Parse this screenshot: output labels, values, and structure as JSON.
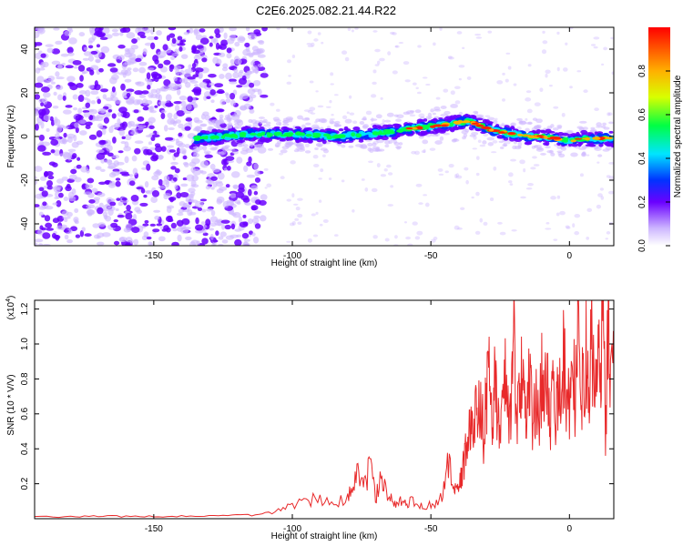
{
  "title": "C2E6.2025.082.21.44.R22",
  "colors": {
    "red_line": "#e8292a",
    "purple": "#6a00ff",
    "light_purple": "#cdb6ff",
    "axis": "#000000"
  },
  "chart_data": [
    {
      "type": "heatmap",
      "name": "spectrogram",
      "title": "C2E6.2025.082.21.44.R22",
      "xlabel": "Height of straight line (km)",
      "ylabel": "Frequency (Hz)",
      "xlim": [
        -193,
        16
      ],
      "ylim": [
        -50,
        50
      ],
      "xticks": [
        -150,
        -100,
        -50,
        0
      ],
      "xtick_labels": [
        "-150",
        "-100",
        "-50",
        "0"
      ],
      "yticks": [
        -40,
        -20,
        0,
        20,
        40
      ],
      "ytick_labels": [
        "-40",
        "-20",
        "0",
        "20",
        "40"
      ],
      "colorbar": {
        "label": "Normalized spectral amplitude",
        "range": [
          0,
          1
        ],
        "ticks": [
          0.0,
          0.2,
          0.4,
          0.6,
          0.8
        ],
        "tick_labels": [
          "0.0",
          "0.2",
          "0.4",
          "0.6",
          "0.8"
        ]
      },
      "ridge": {
        "x": [
          -135,
          -125,
          -115,
          -105,
          -95,
          -85,
          -75,
          -65,
          -55,
          -48,
          -42,
          -36,
          -32,
          -28,
          -24,
          -20,
          -15,
          -10,
          -5,
          0,
          5,
          10,
          16
        ],
        "y": [
          -1,
          0,
          1,
          1,
          1,
          0,
          1,
          2,
          4,
          5,
          6,
          7,
          5,
          3,
          2,
          1,
          0,
          0,
          -1,
          -2,
          -1,
          -1,
          -1
        ]
      },
      "noise_region_x": [
        -193,
        -110
      ]
    },
    {
      "type": "line",
      "name": "snr",
      "xlabel": "Height of straight line (km)",
      "ylabel": "SNR (10 * V/V)",
      "multiplier_label": "(x10",
      "multiplier_exp": "4",
      "xlim": [
        -193,
        16
      ],
      "ylim": [
        0,
        1.25
      ],
      "xticks": [
        -150,
        -100,
        -50,
        0
      ],
      "xtick_labels": [
        "-150",
        "-100",
        "-50",
        "0"
      ],
      "yticks": [
        0.2,
        0.4,
        0.6,
        0.8,
        1.0,
        1.2
      ],
      "ytick_labels": [
        "0.2",
        "0.4",
        "0.6",
        "0.8",
        "1.0",
        "1.2"
      ],
      "series": [
        {
          "x": [
            -193,
            -180,
            -170,
            -160,
            -150,
            -140,
            -130,
            -120,
            -112,
            -105,
            -100,
            -95,
            -90,
            -85,
            -80,
            -78,
            -76,
            -74,
            -72,
            -70,
            -68,
            -66,
            -64,
            -62,
            -60,
            -58,
            -55,
            -52,
            -49,
            -46,
            -44,
            -42,
            -41,
            -40,
            -39,
            -38,
            -37,
            -36,
            -35,
            -34,
            -33,
            -32,
            -31,
            -30,
            -29,
            -28,
            -27,
            -26,
            -25,
            -24,
            -23,
            -22,
            -21,
            -20,
            -19,
            -18,
            -17,
            -16,
            -15,
            -14,
            -13,
            -12,
            -11,
            -10,
            -9,
            -8,
            -7,
            -6,
            -5,
            -4,
            -3,
            -2,
            -1,
            0,
            1,
            2,
            3,
            4,
            5,
            6,
            7,
            8,
            9,
            10,
            11,
            12,
            13,
            14,
            15,
            16
          ],
          "y": [
            0.01,
            0.012,
            0.015,
            0.013,
            0.012,
            0.014,
            0.016,
            0.018,
            0.02,
            0.05,
            0.08,
            0.1,
            0.12,
            0.09,
            0.11,
            0.2,
            0.25,
            0.18,
            0.3,
            0.12,
            0.22,
            0.15,
            0.1,
            0.08,
            0.12,
            0.09,
            0.1,
            0.07,
            0.08,
            0.12,
            0.35,
            0.2,
            0.14,
            0.18,
            0.25,
            0.32,
            0.45,
            0.52,
            0.48,
            0.6,
            0.55,
            0.78,
            0.42,
            0.7,
            0.85,
            0.5,
            0.88,
            0.62,
            0.4,
            0.7,
            0.9,
            0.55,
            0.65,
            1.12,
            0.48,
            0.75,
            0.9,
            0.6,
            0.8,
            0.68,
            0.55,
            0.72,
            0.5,
            0.85,
            0.62,
            0.9,
            0.58,
            0.7,
            0.48,
            0.8,
            0.6,
            0.95,
            0.7,
            0.62,
            0.88,
            0.72,
            1.05,
            0.6,
            0.8,
            0.95,
            0.65,
            1.02,
            0.75,
            0.9,
            0.82,
            1.24,
            0.55,
            1.1,
            0.8,
            0.85
          ]
        }
      ]
    }
  ]
}
